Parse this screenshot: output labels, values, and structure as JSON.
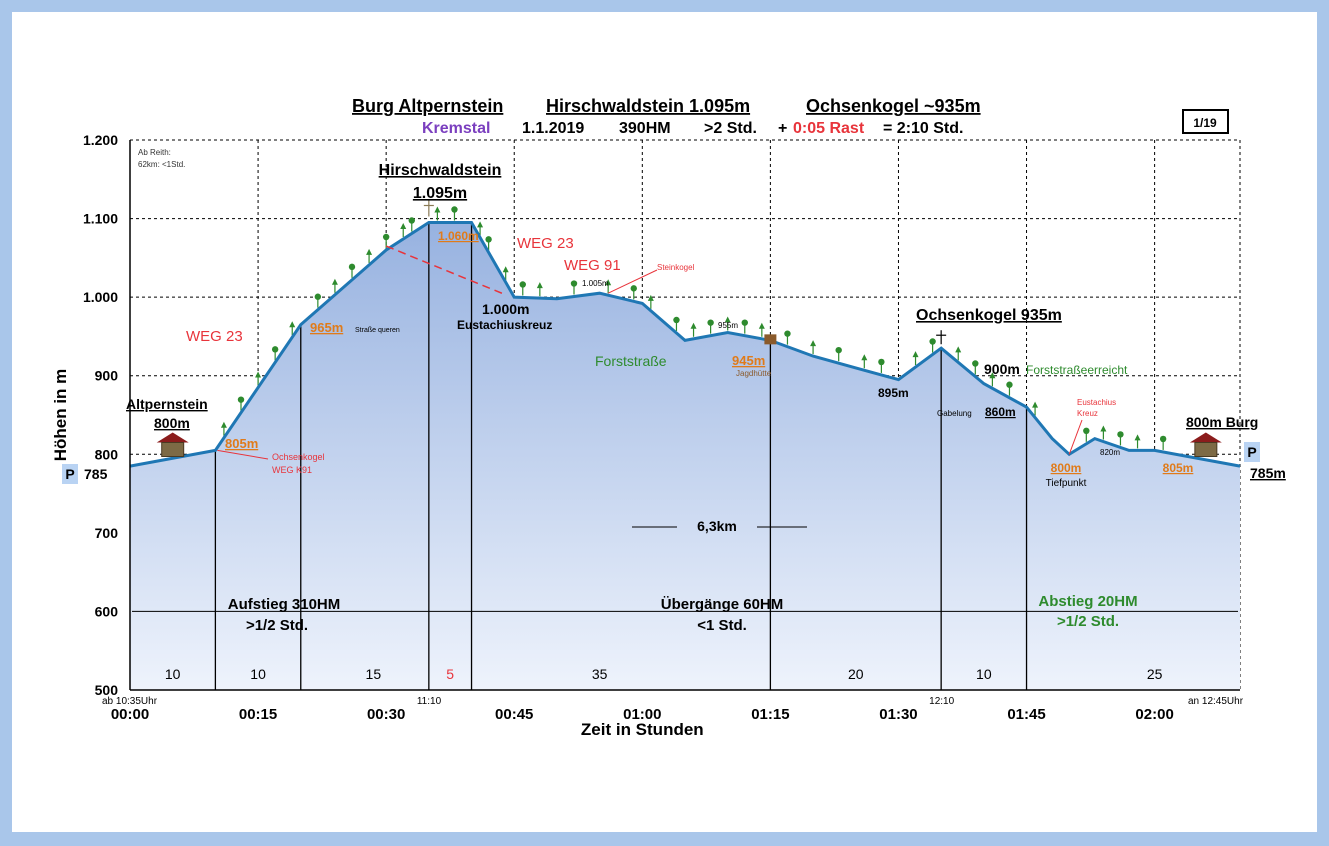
{
  "chart_data": {
    "type": "area",
    "title_parts": [
      "Burg Altpernstein",
      "Hirschwaldstein",
      "1.095m",
      "Ochsenkogel",
      "~935m"
    ],
    "subtitle": {
      "region": "Kremstal",
      "date": "1.1.2019",
      "hm": "390HM",
      "duration": ">2 Std.",
      "plus": "+",
      "rest": "0:05 Rast",
      "eq": "= 2:10 Std."
    },
    "page_badge": "1/19",
    "xlabel": "Zeit in Stunden",
    "ylabel": "Höhen in m",
    "ylim": [
      500,
      1200
    ],
    "xlim": [
      0,
      130
    ],
    "y_ticks": [
      "500",
      "600",
      "700",
      "800",
      "900",
      "1.000",
      "1.100",
      "1.200"
    ],
    "x_ticks": [
      "00:00",
      "00:15",
      "00:30",
      "00:45",
      "01:00",
      "01:15",
      "01:30",
      "01:45",
      "02:00"
    ],
    "profile": {
      "x": [
        0,
        10,
        20,
        30,
        35,
        40,
        45,
        50,
        55,
        60,
        65,
        70,
        75,
        80,
        85,
        90,
        95,
        100,
        105,
        108,
        110,
        113,
        117,
        120,
        130
      ],
      "y": [
        785,
        805,
        965,
        1060,
        1095,
        1095,
        1000,
        998,
        1005,
        992,
        945,
        955,
        945,
        925,
        910,
        895,
        935,
        890,
        860,
        820,
        800,
        820,
        805,
        805,
        785
      ]
    },
    "annotations": {
      "corner_note_1": "Ab Reith:",
      "corner_note_2": "62km: <1Std.",
      "start_name": "Altpernstein",
      "start_elev": "800m",
      "p_left": "P",
      "p_left_val": "785",
      "p_right": "P",
      "p_right_val": "785m",
      "end_name": "800m Burg",
      "weg23_a": "WEG 23",
      "weg23_b": "WEG 23",
      "weg91": "WEG 91",
      "peak1_name": "Hirschwaldstein",
      "peak1_elev": "1.095m",
      "e1060": "1.060m",
      "e965": "965m",
      "strasse": "Straße queren",
      "e805a": "805m",
      "och_hint1": "Ochsenkogel",
      "och_hint2": "WEG K91",
      "e1000": "1.000m",
      "eustachiuskreuz": "Eustachiuskreuz",
      "e1005": "1.005m",
      "steinkogel": "Steinkogel",
      "forststrasse": "Forststraße",
      "e955": "955m",
      "e945": "945m",
      "jagdhuette": "Jagdhütte",
      "e895": "895m",
      "peak2": "Ochsenkogel 935m",
      "e900": "900m",
      "forst_reached": "Forststraßeerreicht",
      "gabelung": "Gabelung",
      "e860": "860m",
      "eust_kreuz1": "Eustachius",
      "eust_kreuz2": "Kreuz",
      "e800": "800m",
      "tiefpunkt": "Tiefpunkt",
      "e820": "820m",
      "e805b": "805m",
      "distance": "6,3km",
      "aufstieg": "Aufstieg 310HM",
      "aufstieg_t": ">1/2 Std.",
      "uebergaenge": "Übergänge 60HM",
      "uebergaenge_t": "<1 Std.",
      "abstieg": "Abstieg 20HM",
      "abstieg_t": ">1/2 Std.",
      "t_start": "ab 10:35Uhr",
      "t_1110": "11:10",
      "t_1210": "12:10",
      "t_end": "an 12:45Uhr"
    },
    "segments": {
      "x": [
        5,
        15,
        28.5,
        37.5,
        55,
        85,
        100,
        120
      ],
      "labels": [
        "10",
        "10",
        "15",
        "5",
        "35",
        "20",
        "10",
        "25"
      ]
    },
    "colors": {
      "fill_top": "#97b2e0",
      "fill_bottom": "#eef3fc",
      "line": "#1f77b4",
      "red": "#e8343b",
      "orange": "#e07b1a",
      "green": "#2e8b2e",
      "purple": "#7b3fbf",
      "badge": "#b9d3f3"
    }
  }
}
